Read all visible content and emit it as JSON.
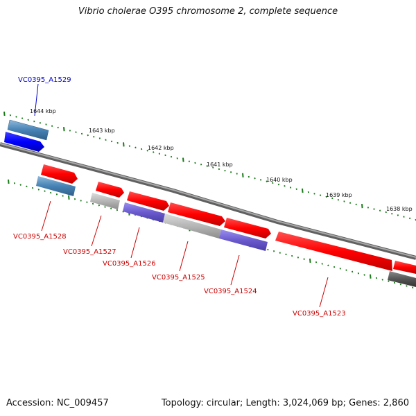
{
  "title": "Vibrio cholerae O395 chromosome 2, complete sequence",
  "footer": {
    "accession": "Accession: NC_009457",
    "summary": "Topology: circular; Length: 3,024,069 bp; Genes: 2,860"
  },
  "colors": {
    "forward_cds": "#ff0000",
    "reverse_cds": "#ff0000",
    "highlight": "#0000ff",
    "steelblue": "#4682b4",
    "grey": "#b0b0b0",
    "slateblue": "#6a5acd",
    "backbone": "#808080",
    "ticks": "#1a7a1a"
  },
  "axis": {
    "unit": "kbp",
    "labels": [
      "1644 kbp",
      "1643 kbp",
      "1642 kbp",
      "1641 kbp",
      "1640 kbp",
      "1639 kbp",
      "1638 kbp"
    ]
  },
  "genes": [
    {
      "label": "VC0395_A1529",
      "color": "#0000cc"
    },
    {
      "label": "VC0395_A1528",
      "color": "#cc0000"
    },
    {
      "label": "VC0395_A1527",
      "color": "#cc0000"
    },
    {
      "label": "VC0395_A1526",
      "color": "#cc0000"
    },
    {
      "label": "VC0395_A1525",
      "color": "#cc0000"
    },
    {
      "label": "VC0395_A1524",
      "color": "#cc0000"
    },
    {
      "label": "VC0395_A1523",
      "color": "#cc0000"
    }
  ]
}
